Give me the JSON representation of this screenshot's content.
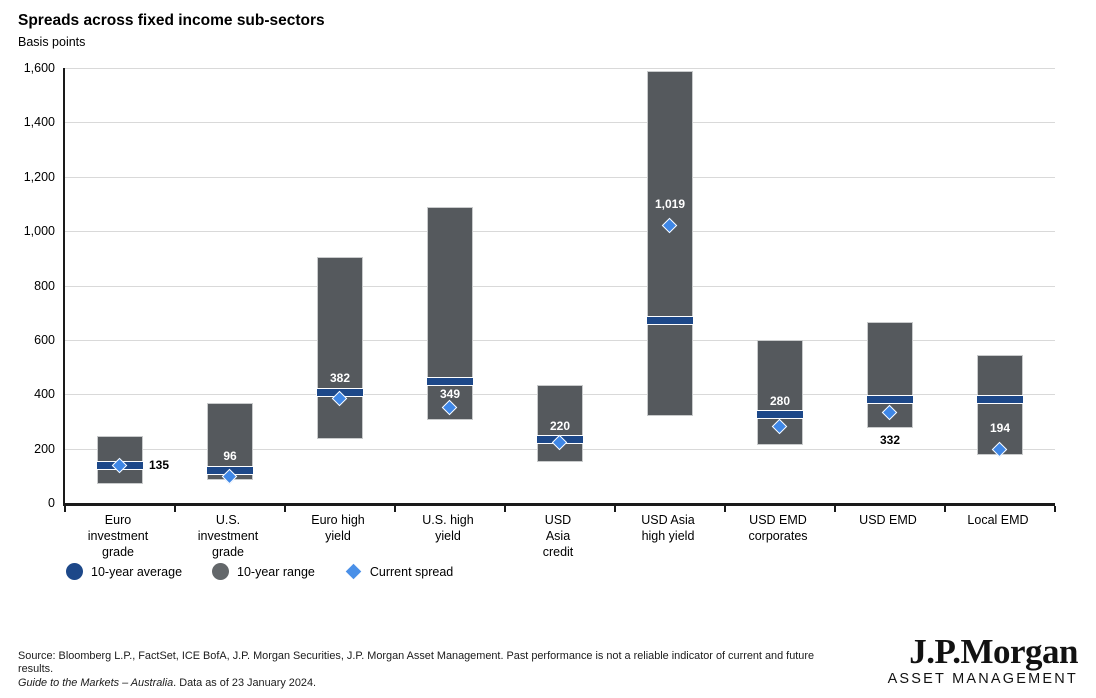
{
  "header": {
    "title": "Spreads across fixed income sub-sectors",
    "subtitle": "Basis points"
  },
  "chart_data": {
    "type": "bar",
    "variant": "floating-range-bar",
    "title": "Spreads across fixed income sub-sectors",
    "xlabel": "",
    "ylabel": "Basis points",
    "ylim": [
      0,
      1600
    ],
    "ytick_step": 200,
    "ytick_labels": [
      "0",
      "200",
      "400",
      "600",
      "800",
      "1,000",
      "1,200",
      "1,400",
      "1,600"
    ],
    "grid": true,
    "legend_position": "bottom-left",
    "categories": [
      "Euro investment grade",
      "U.S. investment grade",
      "Euro high yield",
      "U.S. high yield",
      "USD Asia credit",
      "USD Asia high yield",
      "USD EMD corporates",
      "USD EMD",
      "Local EMD"
    ],
    "category_lines": [
      [
        "Euro",
        "investment",
        "grade"
      ],
      [
        "U.S.",
        "investment",
        "grade"
      ],
      [
        "Euro high",
        "yield"
      ],
      [
        "U.S. high",
        "yield"
      ],
      [
        "USD",
        "Asia",
        "credit"
      ],
      [
        "USD Asia",
        "high yield"
      ],
      [
        "USD EMD",
        "corporates"
      ],
      [
        "USD EMD"
      ],
      [
        "Local EMD"
      ]
    ],
    "series": [
      {
        "name": "10-year range",
        "type": "range",
        "low": [
          70,
          85,
          235,
          305,
          150,
          320,
          215,
          275,
          175
        ],
        "high": [
          245,
          368,
          905,
          1090,
          435,
          1590,
          600,
          665,
          545
        ]
      },
      {
        "name": "10-year average",
        "type": "band",
        "values": [
          138,
          120,
          408,
          447,
          232,
          670,
          324,
          379,
          379
        ]
      },
      {
        "name": "Current spread",
        "type": "diamond",
        "values": [
          135,
          96,
          382,
          349,
          220,
          1019,
          280,
          332,
          194
        ]
      }
    ],
    "value_labels": {
      "text": [
        "135",
        "96",
        "382",
        "349",
        "220",
        "1,019",
        "280",
        "332",
        "194"
      ],
      "position": [
        "right-of-bar",
        "above-avg",
        "above-avg",
        "below-avg",
        "above-avg",
        "above-current",
        "above-avg",
        "below-range",
        "above-current"
      ],
      "color": [
        "#000000",
        "#ffffff",
        "#ffffff",
        "#ffffff",
        "#ffffff",
        "#ffffff",
        "#ffffff",
        "#000000",
        "#ffffff"
      ]
    },
    "colors": {
      "range": "#55595d",
      "average": "#1d4889",
      "current": "#3f87e6",
      "gridline": "#d9d9d9",
      "axis": "#1a1a1a"
    }
  },
  "legend": {
    "items": [
      {
        "label": "10-year average",
        "marker": "circle",
        "color": "#1d4889"
      },
      {
        "label": "10-year range",
        "marker": "circle",
        "color": "#63676a"
      },
      {
        "label": "Current spread",
        "marker": "diamond",
        "color": "#4a90e8"
      }
    ]
  },
  "footer": {
    "source_line1": "Source: Bloomberg L.P., FactSet, ICE BofA, J.P. Morgan Securities, J.P. Morgan Asset Management. Past performance is not a reliable indicator of current and future",
    "source_line2": "results.",
    "gtm_italic": "Guide to the Markets – Australia",
    "gtm_rest": ". Data as of 23 January 2024."
  },
  "logo": {
    "brand": "J.P.Morgan",
    "division": "ASSET MANAGEMENT"
  }
}
